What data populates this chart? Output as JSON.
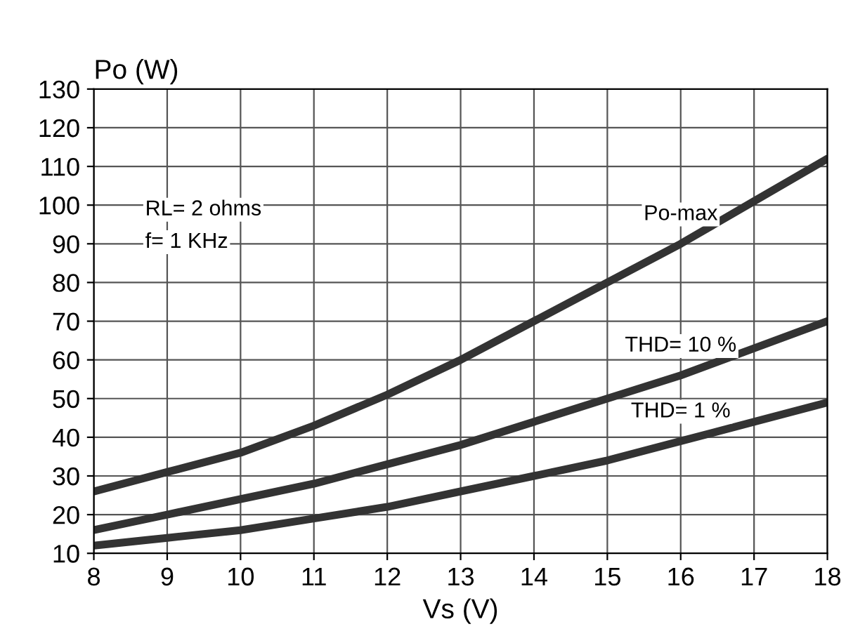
{
  "chart_data": {
    "type": "line",
    "xlabel": "Vs (V)",
    "ylabel": "Po (W)",
    "x": [
      8,
      9,
      10,
      11,
      12,
      13,
      14,
      15,
      16,
      17,
      18
    ],
    "series": [
      {
        "name": "Po-max",
        "color": "#333333",
        "values": [
          26,
          31,
          36,
          43,
          51,
          60,
          70,
          80,
          90,
          101,
          112
        ]
      },
      {
        "name": "THD= 10 %",
        "color": "#333333",
        "values": [
          16,
          20,
          24,
          28,
          33,
          38,
          44,
          50,
          56,
          63,
          70
        ]
      },
      {
        "name": "THD= 1 %",
        "color": "#333333",
        "values": [
          12,
          14,
          16,
          19,
          22,
          26,
          30,
          34,
          39,
          44,
          49
        ]
      }
    ],
    "annotations": [
      "RL= 2 ohms",
      "f= 1 KHz"
    ],
    "xlim": [
      8,
      18
    ],
    "xticks": [
      8,
      9,
      10,
      11,
      12,
      13,
      14,
      15,
      16,
      17,
      18
    ],
    "ylim": [
      10,
      130
    ],
    "yticks": [
      10,
      20,
      30,
      40,
      50,
      60,
      70,
      80,
      90,
      100,
      110,
      120,
      130
    ],
    "grid": true,
    "legend": false,
    "marker": "none",
    "line_style": "solid"
  }
}
